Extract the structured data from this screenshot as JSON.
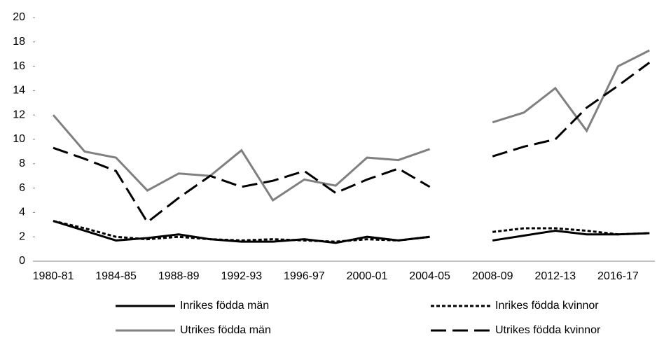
{
  "chart_data": {
    "type": "line",
    "categories": [
      "1980-81",
      null,
      "1984-85",
      null,
      "1988-89",
      null,
      "1992-93",
      null,
      "1996-97",
      null,
      "2000-01",
      null,
      "2004-05",
      null,
      "2008-09",
      null,
      "2012-13",
      null,
      "2016-17",
      null
    ],
    "series": [
      {
        "name": "Inrikes födda män",
        "color": "#000000",
        "dash": "solid",
        "values": [
          3.3,
          2.5,
          1.7,
          1.9,
          2.2,
          1.8,
          1.6,
          1.6,
          1.8,
          1.5,
          2.0,
          1.7,
          2.0,
          null,
          1.7,
          2.1,
          2.5,
          2.2,
          2.2,
          2.3
        ]
      },
      {
        "name": "Inrikes födda kvinnor",
        "color": "#000000",
        "dash": "dotted",
        "values": [
          3.3,
          2.7,
          2.0,
          1.8,
          2.0,
          1.8,
          1.7,
          1.8,
          1.7,
          1.6,
          1.8,
          1.7,
          2.0,
          null,
          2.4,
          2.7,
          2.7,
          2.5,
          2.2,
          2.3
        ]
      },
      {
        "name": "Utrikes födda män",
        "color": "#808080",
        "dash": "solid",
        "values": [
          12.0,
          9.0,
          8.5,
          5.8,
          7.2,
          7.0,
          9.1,
          5.0,
          6.7,
          6.2,
          8.5,
          8.3,
          9.2,
          null,
          11.4,
          12.2,
          14.2,
          10.7,
          16.0,
          17.3
        ]
      },
      {
        "name": "Utrikes födda kvinnor",
        "color": "#000000",
        "dash": "dashed",
        "values": [
          9.3,
          8.4,
          7.4,
          3.2,
          5.2,
          7.0,
          6.1,
          6.6,
          7.4,
          5.6,
          6.7,
          7.6,
          6.1,
          null,
          8.6,
          9.4,
          10.0,
          12.6,
          14.4,
          16.3
        ]
      }
    ],
    "ylim": [
      0,
      20
    ],
    "yticks": [
      0,
      2,
      4,
      6,
      8,
      10,
      12,
      14,
      16,
      18,
      20
    ],
    "grid": false
  }
}
